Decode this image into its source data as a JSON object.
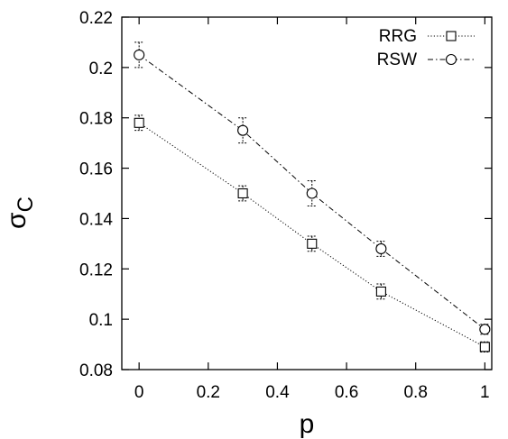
{
  "chart_data": {
    "type": "line",
    "xlabel": "p",
    "ylabel_main": "σ",
    "ylabel_sub": "C",
    "xlim": [
      -0.05,
      1.02
    ],
    "ylim": [
      0.08,
      0.22
    ],
    "x_ticks": [
      0,
      0.2,
      0.4,
      0.6,
      0.8,
      1
    ],
    "x_tick_labels": [
      "0",
      "0.2",
      "0.4",
      "0.6",
      "0.8",
      "1"
    ],
    "y_ticks": [
      0.08,
      0.1,
      0.12,
      0.14,
      0.16,
      0.18,
      0.2,
      0.22
    ],
    "y_tick_labels": [
      "0.08",
      "0.1",
      "0.12",
      "0.14",
      "0.16",
      "0.18",
      "0.2",
      "0.22"
    ],
    "grid": false,
    "legend_position": "top-right",
    "series": [
      {
        "name": "RRG",
        "marker": "square",
        "line_style": "dotted",
        "color": "#000000",
        "x": [
          0,
          0.3,
          0.5,
          0.7,
          1
        ],
        "y": [
          0.178,
          0.15,
          0.13,
          0.111,
          0.089
        ],
        "err": [
          0.003,
          0.003,
          0.003,
          0.003,
          0.002
        ]
      },
      {
        "name": "RSW",
        "marker": "circle",
        "line_style": "dashdot",
        "color": "#000000",
        "x": [
          0,
          0.3,
          0.5,
          0.7,
          1
        ],
        "y": [
          0.205,
          0.175,
          0.15,
          0.128,
          0.096
        ],
        "err": [
          0.005,
          0.005,
          0.005,
          0.003,
          0.002
        ]
      }
    ]
  }
}
